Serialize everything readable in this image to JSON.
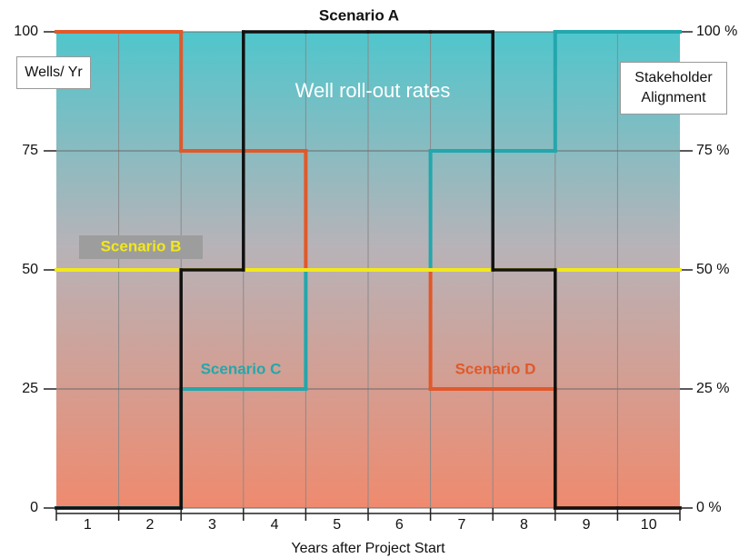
{
  "chart_data": {
    "type": "step",
    "title": "Well roll-out rates",
    "y_label": "Wells/ Yr",
    "y2_label": "Stakeholder Alignment",
    "x_label": "Years after Project Start",
    "categories": [
      "1",
      "2",
      "3",
      "4",
      "5",
      "6",
      "7",
      "8",
      "9",
      "10"
    ],
    "series": [
      {
        "name": "Scenario A",
        "color": "#111111",
        "values": [
          0,
          0,
          50,
          100,
          100,
          100,
          100,
          50,
          0,
          0
        ]
      },
      {
        "name": "Scenario B",
        "color": "#f2e81c",
        "values": [
          50,
          50,
          50,
          50,
          50,
          50,
          50,
          50,
          50,
          50
        ]
      },
      {
        "name": "Scenario C",
        "color": "#23a7ac",
        "values": [
          0,
          0,
          25,
          25,
          50,
          50,
          75,
          75,
          100,
          100
        ]
      },
      {
        "name": "Scenario D",
        "color": "#e0592a",
        "values": [
          100,
          100,
          75,
          75,
          50,
          50,
          25,
          25,
          0,
          0
        ]
      }
    ],
    "ylim": [
      0,
      100
    ],
    "yticks": [
      0,
      25,
      50,
      75,
      100
    ],
    "y2lim": [
      0,
      100
    ],
    "y2ticks": [
      {
        "value": 0,
        "label": "0 %"
      },
      {
        "value": 25,
        "label": "25 %"
      },
      {
        "value": 50,
        "label": "50 %"
      },
      {
        "value": 75,
        "label": "75 %"
      },
      {
        "value": 100,
        "label": "100 %"
      }
    ],
    "grid": true
  }
}
